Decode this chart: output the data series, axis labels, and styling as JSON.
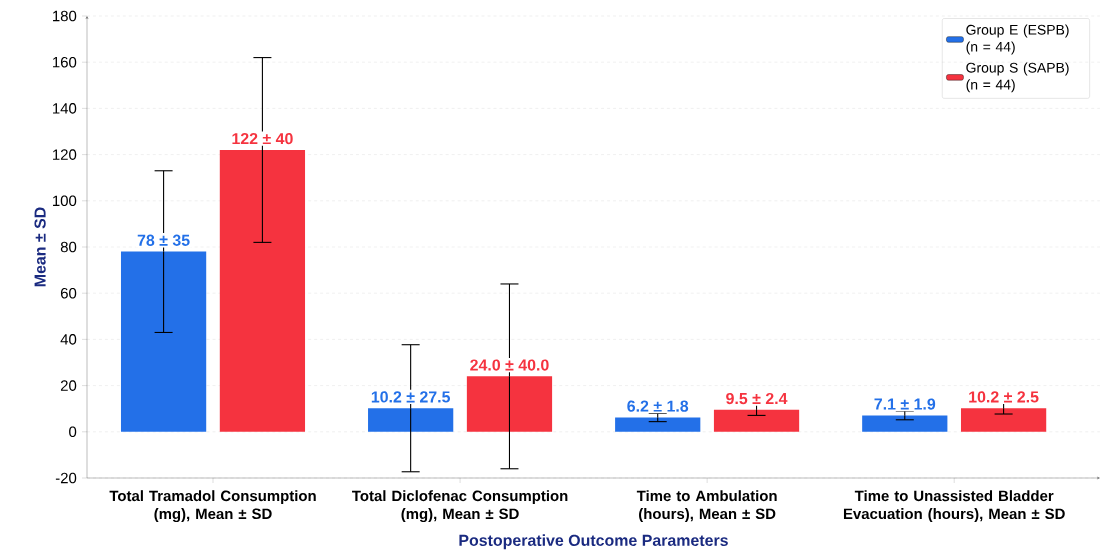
{
  "chart_data": {
    "type": "bar",
    "xlabel": "Postoperative Outcome Parameters",
    "ylabel": "Mean ± SD",
    "categories": [
      "Total Tramadol Consumption (mg), Mean ± SD",
      "Total Diclofenac Consumption (mg), Mean ± SD",
      "Time to Ambulation (hours), Mean ± SD",
      "Time to Unassisted Bladder Evacuation (hours), Mean ± SD"
    ],
    "series": [
      {
        "name": "Group E (ESPB) (n = 44)",
        "color": "#2370e8",
        "values": [
          78,
          10.2,
          6.2,
          7.1
        ],
        "errors": [
          35,
          27.5,
          1.8,
          1.9
        ],
        "value_labels": [
          "78 ± 35",
          "10.2 ± 27.5",
          "6.2 ± 1.8",
          "7.1 ± 1.9"
        ]
      },
      {
        "name": "Group S (SAPB) (n = 44)",
        "color": "#f5333f",
        "values": [
          122,
          24.0,
          9.5,
          10.2
        ],
        "errors": [
          40,
          40.0,
          2.4,
          2.5
        ],
        "value_labels": [
          "122 ± 40",
          "24.0 ± 40.0",
          "9.5 ± 2.4",
          "10.2 ± 2.5"
        ]
      }
    ],
    "ylim": [
      -20,
      180
    ],
    "yticks": [
      -20,
      0,
      20,
      40,
      60,
      80,
      100,
      120,
      140,
      160,
      180
    ],
    "grid": "y",
    "legend": "top right"
  }
}
